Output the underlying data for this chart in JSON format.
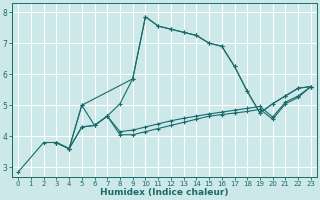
{
  "xlabel": "Humidex (Indice chaleur)",
  "background_color": "#cce8e8",
  "grid_color": "#ffffff",
  "line_color": "#1a6b6b",
  "xlim": [
    -0.5,
    23.5
  ],
  "ylim": [
    2.7,
    8.3
  ],
  "xticks": [
    0,
    1,
    2,
    3,
    4,
    5,
    6,
    7,
    8,
    9,
    10,
    11,
    12,
    13,
    14,
    15,
    16,
    17,
    18,
    19,
    20,
    21,
    22,
    23
  ],
  "yticks": [
    3,
    4,
    5,
    6,
    7,
    8
  ],
  "line1_x": [
    0,
    2,
    3,
    4,
    5,
    6,
    7,
    8,
    9,
    10,
    11,
    12,
    13,
    14,
    15,
    16,
    17,
    18,
    19,
    20,
    21,
    22,
    23
  ],
  "line1_y": [
    2.85,
    3.8,
    3.8,
    3.6,
    5.0,
    4.35,
    4.65,
    5.05,
    5.85,
    7.85,
    7.55,
    7.45,
    7.35,
    7.25,
    7.0,
    6.9,
    6.25,
    5.45,
    4.75,
    5.05,
    5.3,
    5.55,
    5.6
  ],
  "line2_x": [
    3,
    4,
    5,
    6,
    7,
    8,
    9,
    10,
    11,
    12,
    13,
    14,
    15,
    16,
    17,
    18,
    19,
    20,
    21,
    22,
    23
  ],
  "line2_y": [
    3.8,
    3.6,
    4.3,
    4.35,
    4.65,
    4.05,
    4.05,
    4.15,
    4.25,
    4.35,
    4.45,
    4.55,
    4.65,
    4.7,
    4.75,
    4.8,
    4.87,
    4.55,
    5.05,
    5.25,
    5.6
  ],
  "line3_x": [
    3,
    4,
    5,
    6,
    7,
    8,
    9,
    10,
    11,
    12,
    13,
    14,
    15,
    16,
    17,
    18,
    19,
    20,
    21,
    22,
    23
  ],
  "line3_y": [
    3.8,
    3.6,
    4.3,
    4.35,
    4.65,
    4.15,
    4.2,
    4.3,
    4.4,
    4.5,
    4.58,
    4.65,
    4.72,
    4.78,
    4.84,
    4.9,
    4.96,
    4.62,
    5.1,
    5.3,
    5.6
  ],
  "line4_x": [
    3,
    4,
    5,
    9,
    10,
    11,
    12,
    13,
    14,
    15,
    16,
    17,
    18,
    19,
    20,
    21,
    22,
    23
  ],
  "line4_y": [
    3.8,
    3.6,
    5.0,
    5.85,
    7.85,
    7.55,
    7.45,
    7.35,
    7.25,
    7.0,
    6.9,
    6.25,
    5.45,
    4.75,
    5.05,
    5.3,
    5.55,
    5.6
  ]
}
